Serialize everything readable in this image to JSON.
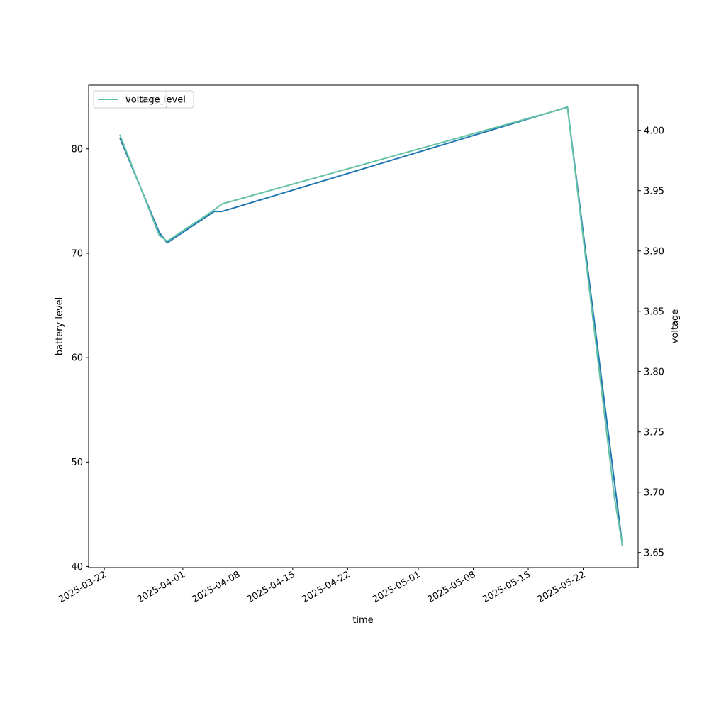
{
  "chart_data": {
    "type": "line",
    "title": "",
    "xlabel": "time",
    "ylabel_left": "battery level",
    "ylabel_right": "voltage",
    "xlim": [
      "2025-03-20",
      "2025-05-29"
    ],
    "ylim_left": [
      39.9,
      86.1
    ],
    "ylim_right": [
      3.6375,
      4.0375
    ],
    "x_ticks": [
      "2025-03-22",
      "2025-04-01",
      "2025-04-08",
      "2025-04-15",
      "2025-04-22",
      "2025-05-01",
      "2025-05-08",
      "2025-05-15",
      "2025-05-22"
    ],
    "y_ticks_left": [
      "40",
      "50",
      "60",
      "70",
      "80"
    ],
    "y_ticks_right": [
      "3.65",
      "3.70",
      "3.75",
      "3.80",
      "3.85",
      "3.90",
      "3.95",
      "4.00"
    ],
    "grid": false,
    "legend_position": "top-left",
    "legend": [
      {
        "label": "battery_level",
        "color": "#1f77b4"
      },
      {
        "label": "voltage",
        "color": "#66c2a5"
      }
    ],
    "series": [
      {
        "name": "battery_level",
        "axis": "left",
        "color": "#1f77b4",
        "points": [
          {
            "x": "2025-03-24",
            "y": 81
          },
          {
            "x": "2025-03-29",
            "y": 72
          },
          {
            "x": "2025-03-30",
            "y": 71
          },
          {
            "x": "2025-04-05",
            "y": 74
          },
          {
            "x": "2025-04-06",
            "y": 74
          },
          {
            "x": "2025-05-20",
            "y": 84
          },
          {
            "x": "2025-05-26",
            "y": 48
          },
          {
            "x": "2025-05-27",
            "y": 42
          }
        ]
      },
      {
        "name": "voltage",
        "axis": "right",
        "color": "#66c2a5",
        "points": [
          {
            "x": "2025-03-24",
            "y": 3.996
          },
          {
            "x": "2025-03-29",
            "y": 3.913
          },
          {
            "x": "2025-03-30",
            "y": 3.908
          },
          {
            "x": "2025-04-05",
            "y": 3.934
          },
          {
            "x": "2025-04-06",
            "y": 3.939
          },
          {
            "x": "2025-05-20",
            "y": 4.019
          },
          {
            "x": "2025-05-26",
            "y": 3.695
          },
          {
            "x": "2025-05-27",
            "y": 3.656
          }
        ]
      }
    ]
  }
}
